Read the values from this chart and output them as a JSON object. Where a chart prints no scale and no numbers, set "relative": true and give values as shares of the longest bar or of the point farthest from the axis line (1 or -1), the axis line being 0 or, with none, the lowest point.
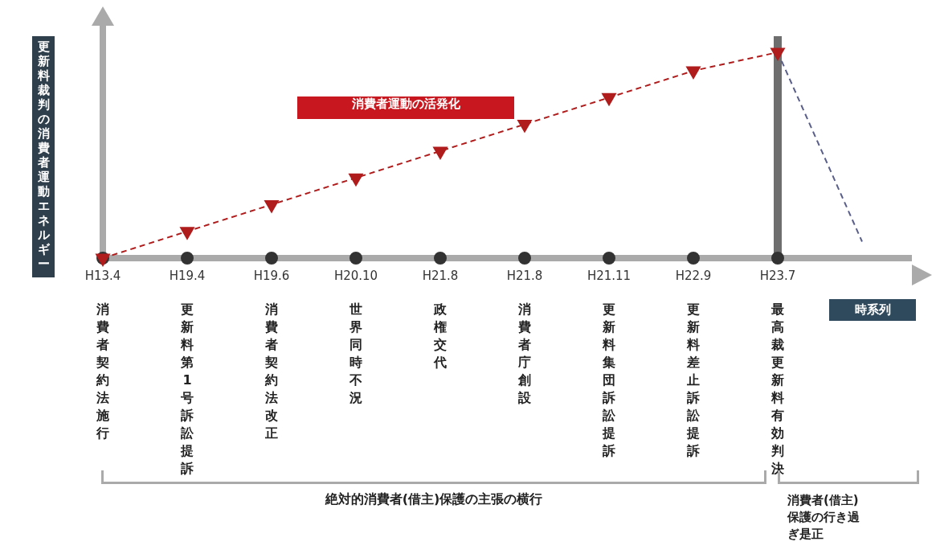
{
  "chart_data": {
    "type": "line",
    "relative": true,
    "ylabel": "更新料裁判の消費者運動エネルギー",
    "xlabel": "時系列",
    "categories": [
      "H13.4",
      "H19.4",
      "H19.6",
      "H20.10",
      "H21.8",
      "H21.8",
      "H21.11",
      "H22.9",
      "H23.7",
      null
    ],
    "series": [
      {
        "color": "#b01c1c",
        "marker": "triangle",
        "line_style": "dashed",
        "values": [
          0,
          0.13,
          0.26,
          0.39,
          0.52,
          0.65,
          0.78,
          0.91,
          1,
          null
        ]
      },
      {
        "color": "#5a5f8a",
        "marker": "none",
        "line_style": "dashed",
        "values": [
          null,
          null,
          null,
          null,
          null,
          null,
          null,
          null,
          1,
          0.08
        ]
      },
      {
        "type": "scatter",
        "color": "#333333",
        "marker": "circle",
        "values": [
          0,
          0,
          0,
          0,
          0,
          0,
          0,
          0,
          0,
          null
        ]
      }
    ],
    "legend": false,
    "ref_lines": [
      {
        "axis": "x",
        "value": "H23.7",
        "color": "#6e6e6e"
      }
    ],
    "annotations": [
      "消費者契約法施行",
      "更新料第1号訴訟提訴",
      "消費者契約法改正",
      "世界同時不況",
      "政権交代",
      "消費者庁創設",
      "更新料集団訴訟提訴",
      "更新料差止訴訟提訴",
      "最高裁更新料有効判決",
      "消費者運動の活発化",
      "絶対的消費者(借主)保護の主張の横行",
      "消費者(借主)保護の行き過ぎ是正"
    ]
  }
}
